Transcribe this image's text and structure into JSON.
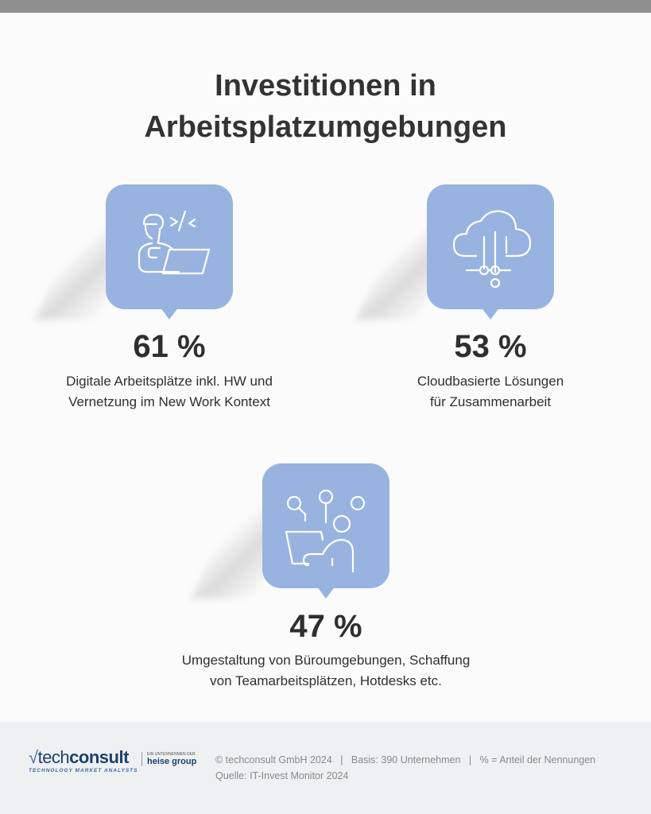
{
  "title": {
    "line1": "Investitionen in",
    "line2": "Arbeitsplatzumgebungen"
  },
  "items": [
    {
      "icon": "person-laptop-code-icon",
      "percent": "61 %",
      "label_line1": "Digitale Arbeitsplätze inkl. HW und",
      "label_line2": "Vernetzung im New Work Kontext"
    },
    {
      "icon": "cloud-network-icon",
      "percent": "53 %",
      "label_line1": "Cloudbasierte Lösungen",
      "label_line2": "für Zusammenarbeit"
    },
    {
      "icon": "person-laptop-connections-icon",
      "percent": "47 %",
      "label_line1": "Umgestaltung von Büroumgebungen, Schaffung",
      "label_line2": "von Teamarbeitsplätzen, Hotdesks etc."
    }
  ],
  "colors": {
    "box": "#98b3e0",
    "footer": "#eff0f2"
  },
  "footer": {
    "logo": {
      "brand_light": "tech",
      "brand_bold": "consult",
      "tagline": "TECHNOLOGY MARKET ANALYSTS",
      "parent_small": "EIN UNTERNEHMEN DER",
      "parent": "heise group"
    },
    "line1": "© techconsult GmbH 2024   |   Basis: 390 Unternehmen   |   % = Anteil der Nennungen",
    "line2": "Quelle: IT-Invest Monitor 2024"
  }
}
